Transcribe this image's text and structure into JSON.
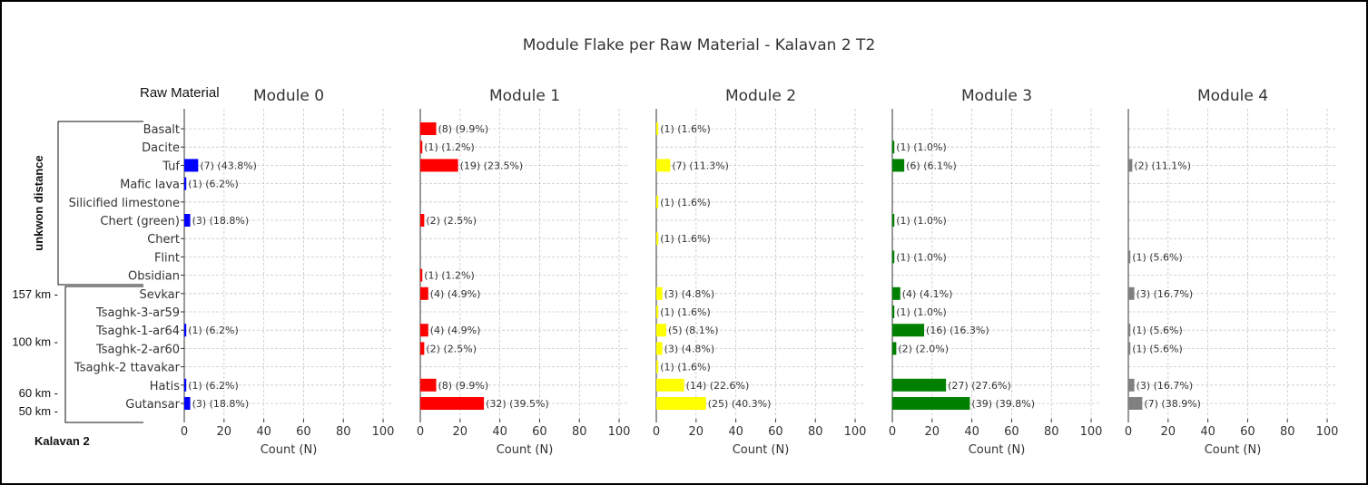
{
  "chart_data": {
    "type": "bar",
    "orientation": "horizontal",
    "title": "Module Flake per Raw Material - Kalavan 2 T2",
    "y_header": "Raw Material",
    "categories": [
      "Basalt",
      "Dacite",
      "Tuf",
      "Mafic lava",
      "Silicified limestone",
      "Chert (green)",
      "Chert",
      "Flint",
      "Obsidian",
      "Sevkar",
      "Tsaghk-3-ar59",
      "Tsaghk-1-ar64",
      "Tsaghk-2-ar60",
      "Tsaghk-2 ttavakar",
      "Hatis",
      "Gutansar"
    ],
    "xlabel": "Count (N)",
    "xlim": [
      0,
      105
    ],
    "xticks": [
      0,
      20,
      40,
      60,
      80,
      100
    ],
    "grid": true,
    "panels": [
      {
        "name": "Module 0",
        "color": "#0000ff",
        "values": [
          0,
          0,
          7,
          1,
          0,
          3,
          0,
          0,
          0,
          0,
          0,
          1,
          0,
          0,
          1,
          3
        ],
        "labels": [
          "",
          "",
          "(7) (43.8%)",
          "(1) (6.2%)",
          "",
          "(3) (18.8%)",
          "",
          "",
          "",
          "",
          "",
          "(1) (6.2%)",
          "",
          "",
          "(1) (6.2%)",
          "(3) (18.8%)"
        ]
      },
      {
        "name": "Module 1",
        "color": "#ff0000",
        "values": [
          8,
          1,
          19,
          0,
          0,
          2,
          0,
          0,
          1,
          4,
          0,
          4,
          2,
          0,
          8,
          32
        ],
        "labels": [
          "(8) (9.9%)",
          "(1) (1.2%)",
          "(19) (23.5%)",
          "",
          "",
          "(2) (2.5%)",
          "",
          "",
          "(1) (1.2%)",
          "(4) (4.9%)",
          "",
          "(4) (4.9%)",
          "(2) (2.5%)",
          "",
          "(8) (9.9%)",
          "(32) (39.5%)"
        ]
      },
      {
        "name": "Module 2",
        "color": "#ffff00",
        "values": [
          1,
          0,
          7,
          0,
          1,
          0,
          1,
          0,
          0,
          3,
          1,
          5,
          3,
          1,
          14,
          25
        ],
        "labels": [
          "(1) (1.6%)",
          "",
          "(7) (11.3%)",
          "",
          "(1) (1.6%)",
          "",
          "(1) (1.6%)",
          "",
          "",
          "(3) (4.8%)",
          "(1) (1.6%)",
          "(5) (8.1%)",
          "(3) (4.8%)",
          "(1) (1.6%)",
          "(14) (22.6%)",
          "(25) (40.3%)"
        ]
      },
      {
        "name": "Module 3",
        "color": "#008000",
        "values": [
          0,
          1,
          6,
          0,
          0,
          1,
          0,
          1,
          0,
          4,
          1,
          16,
          2,
          0,
          27,
          39
        ],
        "labels": [
          "",
          "(1) (1.0%)",
          "(6) (6.1%)",
          "",
          "",
          "(1) (1.0%)",
          "",
          "(1) (1.0%)",
          "",
          "(4) (4.1%)",
          "(1) (1.0%)",
          "(16) (16.3%)",
          "(2) (2.0%)",
          "",
          "(27) (27.6%)",
          "(39) (39.8%)"
        ]
      },
      {
        "name": "Module 4",
        "color": "#808080",
        "values": [
          0,
          0,
          2,
          0,
          0,
          0,
          0,
          1,
          0,
          3,
          0,
          1,
          1,
          0,
          3,
          7
        ],
        "labels": [
          "",
          "",
          "(2) (11.1%)",
          "",
          "",
          "",
          "",
          "(1) (5.6%)",
          "",
          "(3) (16.7%)",
          "",
          "(1) (5.6%)",
          "(1) (5.6%)",
          "",
          "(3) (16.7%)",
          "(7) (38.9%)"
        ]
      }
    ],
    "annotations": {
      "group_top": "unkwon distance",
      "group_bottom": "Kalavan 2",
      "distance_marks": [
        {
          "label": "157 km -",
          "category_index": 9
        },
        {
          "label": "100 km -",
          "category_index": 11.6
        },
        {
          "label": "60 km -",
          "category_index": 14.4
        },
        {
          "label": "50 km -",
          "category_index": 15.4
        }
      ]
    }
  }
}
